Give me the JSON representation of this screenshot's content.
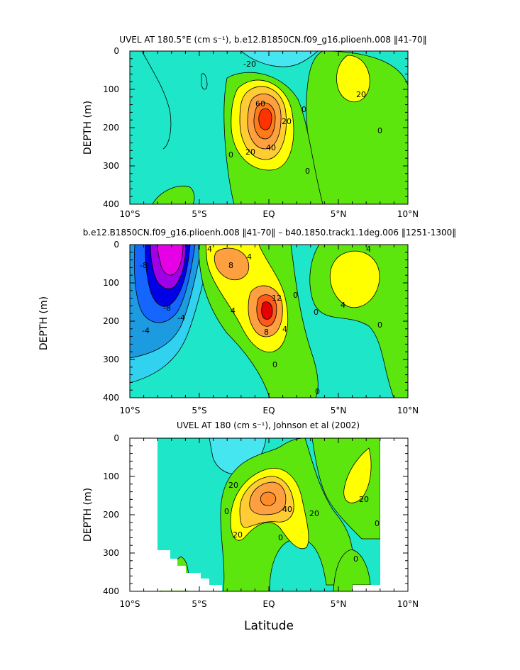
{
  "chart_data": [
    {
      "type": "contour",
      "title": "UVEL AT 180.5°E (cm s⁻¹), b.e12.B1850CN.f09_g16.plioenh.008 ‖41-70‖",
      "ylabel": "DEPTH (m)",
      "xlabel": "",
      "xlim": [
        -10,
        10
      ],
      "ylim": [
        400,
        0
      ],
      "x_ticks": [
        "10°S",
        "5°S",
        "EQ",
        "5°N",
        "10°N"
      ],
      "y_ticks": [
        "0",
        "100",
        "200",
        "300",
        "400"
      ],
      "contour_labels": [
        "-20",
        "20",
        "60",
        "40",
        "20",
        "0",
        "0",
        "0",
        "20",
        "0"
      ],
      "features": [
        {
          "kind": "max",
          "lat": -0.2,
          "depth": 165,
          "value": 60
        },
        {
          "kind": "max",
          "lat": 5.8,
          "depth": 70,
          "value": 20
        },
        {
          "kind": "min",
          "lat": 2.5,
          "depth": 10,
          "value": -20
        }
      ]
    },
    {
      "type": "contour",
      "title": "b.e12.B1850CN.f09_g16.plioenh.008 ‖41-70‖ – b40.1850.track1.1deg.006 ‖1251-1300‖",
      "ylabel": "DEPTH (m)",
      "xlabel": "",
      "xlim": [
        -10,
        10
      ],
      "ylim": [
        400,
        0
      ],
      "x_ticks": [
        "10°S",
        "5°S",
        "EQ",
        "5°N",
        "10°N"
      ],
      "y_ticks": [
        "0",
        "100",
        "200",
        "300",
        "400"
      ],
      "contour_labels": [
        "-8",
        "-8",
        "-4",
        "-4",
        "4",
        "8",
        "4",
        "4",
        "12",
        "8",
        "4",
        "0",
        "0",
        "0",
        "0",
        "4",
        "4",
        "0"
      ],
      "features": [
        {
          "kind": "min",
          "lat": -7.0,
          "depth": 60,
          "value": -20
        },
        {
          "kind": "max",
          "lat": -0.2,
          "depth": 150,
          "value": 12
        },
        {
          "kind": "max",
          "lat": -2.2,
          "depth": 40,
          "value": 8
        },
        {
          "kind": "max",
          "lat": 5.7,
          "depth": 110,
          "value": 4
        }
      ]
    },
    {
      "type": "contour",
      "title": "UVEL AT 180 (cm s⁻¹), Johnson et al (2002)",
      "ylabel": "DEPTH (m)",
      "xlabel": "Latitude",
      "xlim": [
        -10,
        10
      ],
      "ylim": [
        400,
        0
      ],
      "x_ticks": [
        "10°S",
        "5°S",
        "EQ",
        "5°N",
        "10°N"
      ],
      "y_ticks": [
        "0",
        "100",
        "200",
        "300",
        "400"
      ],
      "contour_labels": [
        "0",
        "20",
        "40",
        "20",
        "20",
        "20",
        "0",
        "0",
        "0"
      ],
      "features": [
        {
          "kind": "max",
          "lat": 0.2,
          "depth": 170,
          "value": 40
        },
        {
          "kind": "max",
          "lat": 6.2,
          "depth": 90,
          "value": 20
        }
      ]
    }
  ]
}
